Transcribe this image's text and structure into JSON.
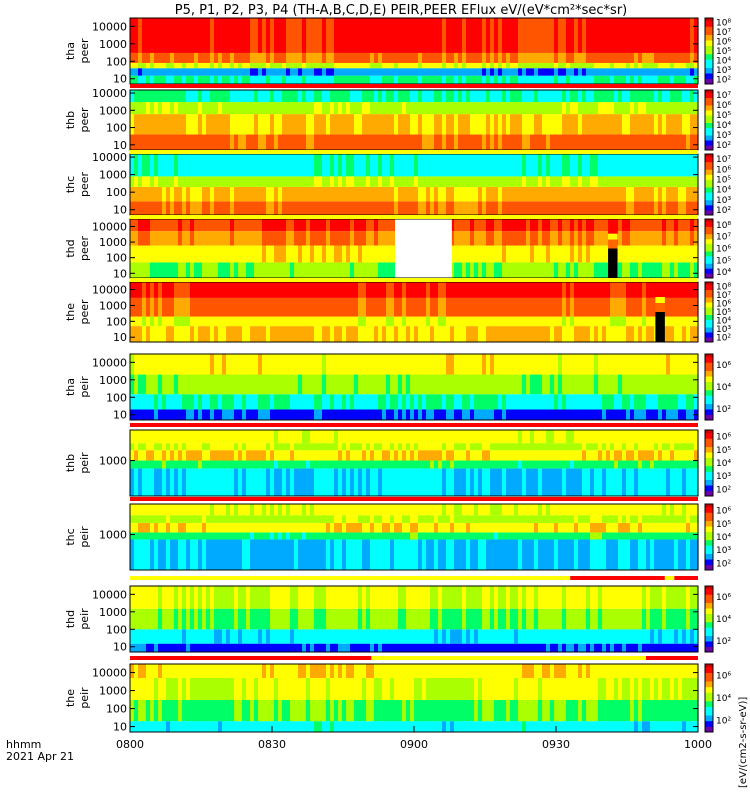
{
  "title": "P5, P1, P2, P3, P4 (TH-A,B,C,D,E) PEIR,PEER EFlux eV/(eV*cm²*sec*sr)",
  "footer": {
    "time_label": "hhmm",
    "date_label": "2021 Apr 21"
  },
  "colorbar_unit": "[eV/(cm2-s-sr-eV)]",
  "colors": {
    "spectrogram": [
      "#6a00a8",
      "#0000ff",
      "#00aaff",
      "#00ffff",
      "#00ff66",
      "#aaff00",
      "#ffff00",
      "#ffaa00",
      "#ff5500",
      "#ff0000",
      "#cc0000"
    ]
  },
  "chart_data": [
    {
      "type": "heatmap",
      "probe_label": "tha",
      "instrument_label": "peer",
      "x_range": [
        "0800",
        "1000"
      ],
      "yscale": "log",
      "ylim": [
        5,
        30000
      ],
      "y_ticks": [
        "10",
        "100",
        "1000",
        "10000"
      ],
      "colorbar_ticks": [
        "10²",
        "10³",
        "10⁴",
        "10⁵",
        "10⁶",
        "10⁷",
        "10⁸"
      ],
      "colorbar_range": [
        1,
        9
      ],
      "level_bands": [
        {
          "energy_low": 5,
          "energy_high": 15,
          "level": 3.5
        },
        {
          "energy_low": 15,
          "energy_high": 40,
          "level": 1.8
        },
        {
          "energy_low": 40,
          "energy_high": 80,
          "level": 5.5
        },
        {
          "energy_low": 80,
          "energy_high": 300,
          "level": 7.6
        },
        {
          "energy_low": 300,
          "energy_high": 30000,
          "level": 8.7
        }
      ],
      "data_gaps": [],
      "fill_columns": []
    },
    {
      "type": "heatmap",
      "probe_label": "thb",
      "instrument_label": "peer",
      "x_range": [
        "0800",
        "1000"
      ],
      "yscale": "log",
      "ylim": [
        5,
        15000
      ],
      "y_ticks": [
        "10",
        "100",
        "1000",
        "10000"
      ],
      "colorbar_ticks": [
        "10²",
        "10³",
        "10⁴",
        "10⁵",
        "10⁶",
        "10⁷"
      ],
      "colorbar_range": [
        1,
        8
      ],
      "level_bands": [
        {
          "energy_low": 5,
          "energy_high": 40,
          "level": 7.8
        },
        {
          "energy_low": 40,
          "energy_high": 600,
          "level": 6.6
        },
        {
          "energy_low": 600,
          "energy_high": 3000,
          "level": 5.2
        },
        {
          "energy_low": 3000,
          "energy_high": 15000,
          "level": 3.5
        }
      ],
      "data_gaps": [],
      "fill_columns": []
    },
    {
      "type": "heatmap",
      "probe_label": "thc",
      "instrument_label": "peer",
      "x_range": [
        "0800",
        "1000"
      ],
      "yscale": "log",
      "ylim": [
        5,
        15000
      ],
      "y_ticks": [
        "10",
        "100",
        "1000",
        "10000"
      ],
      "colorbar_ticks": [
        "10²",
        "10³",
        "10⁴",
        "10⁵",
        "10⁶",
        "10⁷"
      ],
      "colorbar_range": [
        1,
        8
      ],
      "level_bands": [
        {
          "energy_low": 5,
          "energy_high": 30,
          "level": 7.8
        },
        {
          "energy_low": 30,
          "energy_high": 200,
          "level": 6.8
        },
        {
          "energy_low": 200,
          "energy_high": 800,
          "level": 5.2
        },
        {
          "energy_low": 800,
          "energy_high": 15000,
          "level": 3.2
        }
      ],
      "data_gaps": [],
      "fill_columns": []
    },
    {
      "type": "heatmap",
      "probe_label": "thd",
      "instrument_label": "peer",
      "x_range": [
        "0800",
        "1000"
      ],
      "yscale": "log",
      "ylim": [
        5,
        30000
      ],
      "y_ticks": [
        "10",
        "100",
        "1000",
        "10000"
      ],
      "colorbar_ticks": [
        "10⁴",
        "10⁵",
        "10⁶",
        "10⁷",
        "10⁸"
      ],
      "colorbar_range": [
        3,
        9
      ],
      "level_bands": [
        {
          "energy_low": 5,
          "energy_high": 50,
          "level": 4.6
        },
        {
          "energy_low": 50,
          "energy_high": 600,
          "level": 6.2
        },
        {
          "energy_low": 600,
          "energy_high": 5000,
          "level": 7.4
        },
        {
          "energy_low": 5000,
          "energy_high": 30000,
          "level": 8.4
        }
      ],
      "data_gaps": [
        {
          "start_min": 56,
          "end_min": 68
        }
      ],
      "fill_columns": [
        {
          "start_min": 101,
          "end_min": 103
        }
      ]
    },
    {
      "type": "heatmap",
      "probe_label": "the",
      "instrument_label": "peer",
      "x_range": [
        "0800",
        "1000"
      ],
      "yscale": "log",
      "ylim": [
        5,
        30000
      ],
      "y_ticks": [
        "10",
        "100",
        "1000",
        "10000"
      ],
      "colorbar_ticks": [
        "10²",
        "10³",
        "10⁴",
        "10⁵",
        "10⁶",
        "10⁷",
        "10⁸"
      ],
      "colorbar_range": [
        1,
        9
      ],
      "level_bands": [
        {
          "energy_low": 5,
          "energy_high": 50,
          "level": 6.6
        },
        {
          "energy_low": 50,
          "energy_high": 200,
          "level": 5.8
        },
        {
          "energy_low": 200,
          "energy_high": 3000,
          "level": 7.8
        },
        {
          "energy_low": 3000,
          "energy_high": 30000,
          "level": 8.8
        }
      ],
      "data_gaps": [],
      "fill_columns": [
        {
          "start_min": 111,
          "end_min": 113
        }
      ]
    },
    {
      "type": "heatmap",
      "probe_label": "tha",
      "instrument_label": "peir",
      "x_range": [
        "0800",
        "1000"
      ],
      "yscale": "log",
      "ylim": [
        5,
        30000
      ],
      "y_ticks": [
        "10",
        "100",
        "1000",
        "10000"
      ],
      "colorbar_ticks": [
        "10²",
        "10⁴",
        "10⁶"
      ],
      "colorbar_range": [
        1,
        7
      ],
      "level_bands": [
        {
          "energy_low": 5,
          "energy_high": 20,
          "level": 1.3
        },
        {
          "energy_low": 20,
          "energy_high": 150,
          "level": 3.4
        },
        {
          "energy_low": 150,
          "energy_high": 2000,
          "level": 4.8
        },
        {
          "energy_low": 2000,
          "energy_high": 30000,
          "level": 6.0
        }
      ],
      "data_gaps": [],
      "fill_columns": []
    },
    {
      "type": "heatmap",
      "probe_label": "thb",
      "instrument_label": "peir",
      "x_range": [
        "0800",
        "1000"
      ],
      "yscale": "log",
      "ylim": [
        200,
        4000
      ],
      "y_ticks": [
        "1000"
      ],
      "colorbar_ticks": [
        "10²",
        "10³",
        "10⁴",
        "10⁵",
        "10⁶"
      ],
      "colorbar_range": [
        1,
        7
      ],
      "level_bands": [
        {
          "energy_low": 200,
          "energy_high": 700,
          "level": 2.6
        },
        {
          "energy_low": 700,
          "energy_high": 1000,
          "level": 4.0
        },
        {
          "energy_low": 1000,
          "energy_high": 1600,
          "level": 6.4
        },
        {
          "energy_low": 1600,
          "energy_high": 2200,
          "level": 5.4
        },
        {
          "energy_low": 2200,
          "energy_high": 4000,
          "level": 5.9
        }
      ],
      "data_gaps": [],
      "fill_columns": []
    },
    {
      "type": "heatmap",
      "probe_label": "thc",
      "instrument_label": "peir",
      "x_range": [
        "0800",
        "1000"
      ],
      "yscale": "log",
      "ylim": [
        200,
        4000
      ],
      "y_ticks": [
        "1000"
      ],
      "colorbar_ticks": [
        "10²",
        "10³",
        "10⁴",
        "10⁵",
        "10⁶"
      ],
      "colorbar_range": [
        1,
        7
      ],
      "level_bands": [
        {
          "energy_low": 200,
          "energy_high": 800,
          "level": 2.4
        },
        {
          "energy_low": 800,
          "energy_high": 1100,
          "level": 4.0
        },
        {
          "energy_low": 1100,
          "energy_high": 1700,
          "level": 6.3
        },
        {
          "energy_low": 1700,
          "energy_high": 2400,
          "level": 5.2
        },
        {
          "energy_low": 2400,
          "energy_high": 4000,
          "level": 5.8
        }
      ],
      "data_gaps": [],
      "fill_columns": []
    },
    {
      "type": "heatmap",
      "probe_label": "thd",
      "instrument_label": "peir",
      "x_range": [
        "0800",
        "1000"
      ],
      "yscale": "log",
      "ylim": [
        5,
        30000
      ],
      "y_ticks": [
        "10",
        "100",
        "1000",
        "10000"
      ],
      "colorbar_ticks": [
        "10²",
        "10⁴",
        "10⁶"
      ],
      "colorbar_range": [
        1,
        7
      ],
      "level_bands": [
        {
          "energy_low": 5,
          "energy_high": 15,
          "level": 1.2
        },
        {
          "energy_low": 15,
          "energy_high": 100,
          "level": 2.8
        },
        {
          "energy_low": 100,
          "energy_high": 1500,
          "level": 4.6
        },
        {
          "energy_low": 1500,
          "energy_high": 30000,
          "level": 5.6
        }
      ],
      "data_gaps": [],
      "fill_columns": []
    },
    {
      "type": "heatmap",
      "probe_label": "the",
      "instrument_label": "peir",
      "x_range": [
        "0800",
        "1000"
      ],
      "yscale": "log",
      "ylim": [
        5,
        30000
      ],
      "y_ticks": [
        "10",
        "100",
        "1000",
        "10000"
      ],
      "colorbar_ticks": [
        "10²",
        "10⁴",
        "10⁶"
      ],
      "colorbar_range": [
        1,
        7
      ],
      "level_bands": [
        {
          "energy_low": 5,
          "energy_high": 20,
          "level": 3.0
        },
        {
          "energy_low": 20,
          "energy_high": 300,
          "level": 4.4
        },
        {
          "energy_low": 300,
          "energy_high": 5000,
          "level": 5.6
        },
        {
          "energy_low": 5000,
          "energy_high": 30000,
          "level": 6.2
        }
      ],
      "data_gaps": [],
      "fill_columns": []
    }
  ],
  "x_axis": {
    "ticks": [
      "0800",
      "0830",
      "0900",
      "0930",
      "1000"
    ]
  },
  "mode_bars": [
    {
      "segments": [
        {
          "start_min": 0,
          "end_min": 120,
          "color": "#ff0000"
        }
      ]
    },
    {
      "segments": [
        {
          "start_min": 0,
          "end_min": 120,
          "color": "#ffff00"
        }
      ]
    },
    {
      "segments": [
        {
          "start_min": 0,
          "end_min": 120,
          "color": "#ffff00"
        }
      ]
    },
    {
      "segments": [
        {
          "start_min": 0,
          "end_min": 120,
          "color": "#ffff00"
        }
      ]
    },
    {
      "segments": [
        {
          "start_min": 0,
          "end_min": 120,
          "color": "#ffffff"
        }
      ]
    },
    {
      "segments": [
        {
          "start_min": 0,
          "end_min": 120,
          "color": "#ff0000"
        }
      ]
    },
    {
      "segments": [
        {
          "start_min": 0,
          "end_min": 120,
          "color": "#ff0000"
        }
      ]
    },
    {
      "segments": [
        {
          "start_min": 0,
          "end_min": 93,
          "color": "#ffff00"
        },
        {
          "start_min": 93,
          "end_min": 113,
          "color": "#ff0000"
        },
        {
          "start_min": 113,
          "end_min": 115,
          "color": "#ffff00"
        },
        {
          "start_min": 115,
          "end_min": 120,
          "color": "#ff0000"
        }
      ]
    },
    {
      "segments": [
        {
          "start_min": 0,
          "end_min": 51,
          "color": "#ff0000"
        },
        {
          "start_min": 51,
          "end_min": 109,
          "color": "#ffff00"
        },
        {
          "start_min": 109,
          "end_min": 120,
          "color": "#ff0000"
        }
      ]
    }
  ]
}
